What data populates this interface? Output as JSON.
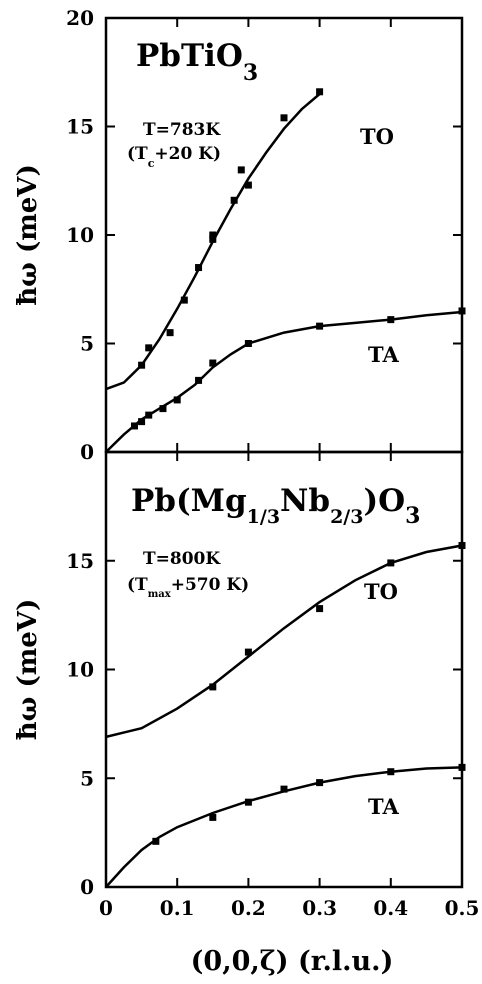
{
  "xlabel": "(0,0,ζ) (r.l.u.)",
  "chart_data": [
    {
      "type": "scatter",
      "title": "PbTiO",
      "title_sub": "3",
      "condition_line1": "T=783K",
      "condition_line2_pre": "(T",
      "condition_line2_sub": "c",
      "condition_line2_post": "+20 K)",
      "ylabel": "ħω (meV)",
      "xlim": [
        0,
        0.5
      ],
      "ylim": [
        0,
        20
      ],
      "x_ticks": [
        0,
        0.1,
        0.2,
        0.3,
        0.4,
        0.5
      ],
      "y_ticks": [
        0,
        5,
        10,
        15,
        20
      ],
      "series": [
        {
          "name": "TO",
          "points": [
            [
              0.05,
              4.0
            ],
            [
              0.06,
              4.8
            ],
            [
              0.09,
              5.5
            ],
            [
              0.11,
              7.0
            ],
            [
              0.13,
              8.5
            ],
            [
              0.15,
              9.8
            ],
            [
              0.15,
              10.0
            ],
            [
              0.18,
              11.6
            ],
            [
              0.19,
              13.0
            ],
            [
              0.2,
              12.3
            ],
            [
              0.25,
              15.4
            ],
            [
              0.3,
              16.6
            ]
          ],
          "curve": [
            [
              0,
              2.9
            ],
            [
              0.025,
              3.2
            ],
            [
              0.05,
              4.0
            ],
            [
              0.075,
              5.2
            ],
            [
              0.1,
              6.6
            ],
            [
              0.125,
              8.1
            ],
            [
              0.15,
              9.7
            ],
            [
              0.175,
              11.2
            ],
            [
              0.2,
              12.6
            ],
            [
              0.225,
              13.8
            ],
            [
              0.25,
              14.9
            ],
            [
              0.275,
              15.8
            ],
            [
              0.3,
              16.5
            ]
          ]
        },
        {
          "name": "TA",
          "points": [
            [
              0.04,
              1.2
            ],
            [
              0.05,
              1.4
            ],
            [
              0.06,
              1.7
            ],
            [
              0.08,
              2.0
            ],
            [
              0.1,
              2.4
            ],
            [
              0.13,
              3.3
            ],
            [
              0.15,
              4.1
            ],
            [
              0.2,
              5.0
            ],
            [
              0.3,
              5.8
            ],
            [
              0.4,
              6.1
            ],
            [
              0.5,
              6.5
            ]
          ],
          "curve": [
            [
              0,
              0
            ],
            [
              0.025,
              0.8
            ],
            [
              0.05,
              1.5
            ],
            [
              0.075,
              2.0
            ],
            [
              0.1,
              2.5
            ],
            [
              0.125,
              3.1
            ],
            [
              0.15,
              3.9
            ],
            [
              0.175,
              4.5
            ],
            [
              0.2,
              5.0
            ],
            [
              0.25,
              5.5
            ],
            [
              0.3,
              5.8
            ],
            [
              0.35,
              5.95
            ],
            [
              0.4,
              6.1
            ],
            [
              0.45,
              6.3
            ],
            [
              0.5,
              6.45
            ]
          ]
        }
      ]
    },
    {
      "type": "scatter",
      "title_parts": [
        "Pb(Mg",
        "1/3",
        "Nb",
        "2/3",
        ")O",
        "3"
      ],
      "condition_line1": "T=800K",
      "condition_line2_pre": "(T",
      "condition_line2_sub": "max",
      "condition_line2_post": "+570 K)",
      "ylabel": "ħω (meV)",
      "xlim": [
        0,
        0.5
      ],
      "ylim": [
        0,
        20
      ],
      "x_ticks": [
        0,
        0.1,
        0.2,
        0.3,
        0.4,
        0.5
      ],
      "y_ticks": [
        0,
        5,
        10,
        15
      ],
      "series": [
        {
          "name": "TO",
          "points": [
            [
              0.15,
              9.2
            ],
            [
              0.2,
              10.8
            ],
            [
              0.3,
              12.8
            ],
            [
              0.4,
              14.9
            ],
            [
              0.5,
              15.7
            ]
          ],
          "curve": [
            [
              0,
              6.9
            ],
            [
              0.05,
              7.3
            ],
            [
              0.1,
              8.2
            ],
            [
              0.15,
              9.3
            ],
            [
              0.2,
              10.6
            ],
            [
              0.25,
              11.9
            ],
            [
              0.3,
              13.1
            ],
            [
              0.35,
              14.1
            ],
            [
              0.4,
              14.9
            ],
            [
              0.45,
              15.4
            ],
            [
              0.5,
              15.7
            ]
          ]
        },
        {
          "name": "TA",
          "points": [
            [
              0.07,
              2.1
            ],
            [
              0.15,
              3.2
            ],
            [
              0.2,
              3.9
            ],
            [
              0.25,
              4.5
            ],
            [
              0.3,
              4.8
            ],
            [
              0.4,
              5.3
            ],
            [
              0.5,
              5.5
            ]
          ],
          "curve": [
            [
              0,
              0
            ],
            [
              0.025,
              0.9
            ],
            [
              0.05,
              1.7
            ],
            [
              0.075,
              2.3
            ],
            [
              0.1,
              2.75
            ],
            [
              0.15,
              3.4
            ],
            [
              0.2,
              3.95
            ],
            [
              0.25,
              4.4
            ],
            [
              0.3,
              4.8
            ],
            [
              0.35,
              5.1
            ],
            [
              0.4,
              5.3
            ],
            [
              0.45,
              5.45
            ],
            [
              0.5,
              5.5
            ]
          ]
        }
      ]
    }
  ]
}
